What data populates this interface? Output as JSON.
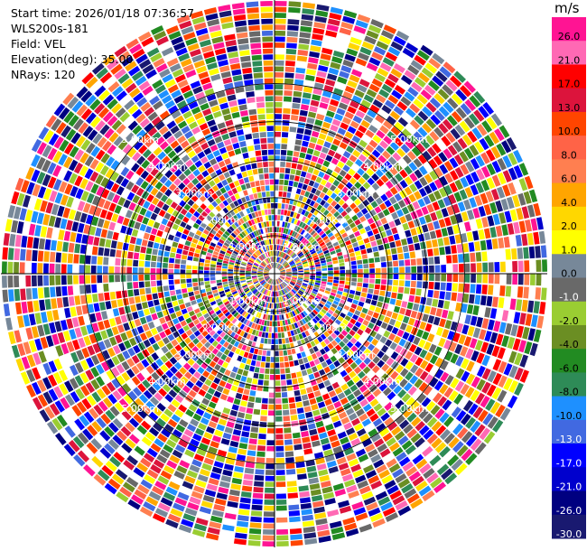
{
  "info": {
    "start_time": "Start time: 2026/01/18 07:36:57",
    "instrument": "WLS200s-181",
    "field": "Field: VEL",
    "elevation": "Elevation(deg): 35.00",
    "nrays": "NRays: 120"
  },
  "chart_data": {
    "type": "heatmap",
    "projection": "polar (PPI)",
    "nrays": 120,
    "range_rings_km": [
      1.0,
      2.0,
      3.0,
      4.0,
      5.0
    ],
    "ring_labels": [
      "1.00km",
      "2.00km",
      "3.00km",
      "4.00km",
      "5.00km"
    ],
    "max_range_km": 7.2,
    "colorbar": {
      "units": "m/s",
      "ticks": [
        "26.0",
        "21.0",
        "17.0",
        "13.0",
        "10.0",
        "8.0",
        "6.0",
        "4.0",
        "2.0",
        "1.0",
        "0.0",
        "-1.0",
        "-2.0",
        "-4.0",
        "-6.0",
        "-8.0",
        "-10.0",
        "-13.0",
        "-17.0",
        "-21.0",
        "-26.0",
        "-30.0"
      ],
      "colors": [
        "#ff1493",
        "#ff69b4",
        "#ff0000",
        "#dc143c",
        "#ff4500",
        "#ff6347",
        "#ff7f50",
        "#ffa500",
        "#ffd700",
        "#ffff00",
        "#778899",
        "#696969",
        "#9acd32",
        "#6b8e23",
        "#228b22",
        "#2e8b57",
        "#1e90ff",
        "#4169e1",
        "#0000ff",
        "#0000cd",
        "#000080",
        "#191970"
      ]
    }
  }
}
